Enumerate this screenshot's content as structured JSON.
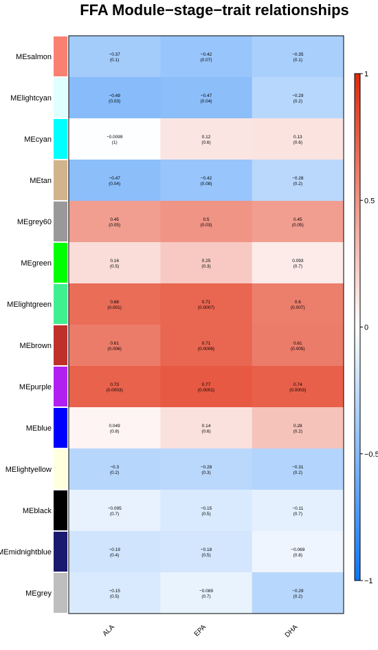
{
  "chart_data": {
    "type": "heatmap",
    "title": "FFA Module−stage−trait relationships",
    "columns": [
      "ALA",
      "EPA",
      "DHA"
    ],
    "rows": [
      {
        "name": "MEsalmon",
        "color": "#FA8072",
        "cells": [
          {
            "r": -0.37,
            "label": "−0.37",
            "p": "(0.1)"
          },
          {
            "r": -0.42,
            "label": "−0.42",
            "p": "(0.07)"
          },
          {
            "r": -0.35,
            "label": "−0.35",
            "p": "(0.1)"
          }
        ]
      },
      {
        "name": "MElightcyan",
        "color": "#E0FFFF",
        "cells": [
          {
            "r": -0.49,
            "label": "−0.49",
            "p": "(0.03)"
          },
          {
            "r": -0.47,
            "label": "−0.47",
            "p": "(0.04)"
          },
          {
            "r": -0.29,
            "label": "−0.29",
            "p": "(0.2)"
          }
        ]
      },
      {
        "name": "MEcyan",
        "color": "#00FFFF",
        "cells": [
          {
            "r": -0.0099,
            "label": "−0.0099",
            "p": "(1)"
          },
          {
            "r": 0.12,
            "label": "0.12",
            "p": "(0.6)"
          },
          {
            "r": 0.13,
            "label": "0.13",
            "p": "(0.6)"
          }
        ]
      },
      {
        "name": "MEtan",
        "color": "#D2B48C",
        "cells": [
          {
            "r": -0.47,
            "label": "−0.47",
            "p": "(0.04)"
          },
          {
            "r": -0.42,
            "label": "−0.42",
            "p": "(0.08)"
          },
          {
            "r": -0.28,
            "label": "−0.28",
            "p": "(0.2)"
          }
        ]
      },
      {
        "name": "MEgrey60",
        "color": "#999999",
        "cells": [
          {
            "r": 0.45,
            "label": "0.45",
            "p": "(0.05)"
          },
          {
            "r": 0.5,
            "label": "0.5",
            "p": "(0.03)"
          },
          {
            "r": 0.45,
            "label": "0.45",
            "p": "(0.05)"
          }
        ]
      },
      {
        "name": "MEgreen",
        "color": "#00FF00",
        "cells": [
          {
            "r": 0.16,
            "label": "0.16",
            "p": "(0.5)"
          },
          {
            "r": 0.25,
            "label": "0.25",
            "p": "(0.3)"
          },
          {
            "r": 0.093,
            "label": "0.093",
            "p": "(0.7)"
          }
        ]
      },
      {
        "name": "MElightgreen",
        "color": "#40F090",
        "cells": [
          {
            "r": 0.68,
            "label": "0.68",
            "p": "(0.001)"
          },
          {
            "r": 0.71,
            "label": "0.71",
            "p": "(0.0007)"
          },
          {
            "r": 0.6,
            "label": "0.6",
            "p": "(0.007)"
          }
        ]
      },
      {
        "name": "MEbrown",
        "color": "#C0302A",
        "cells": [
          {
            "r": 0.61,
            "label": "0.61",
            "p": "(0.006)"
          },
          {
            "r": 0.71,
            "label": "0.71",
            "p": "(0.0006)"
          },
          {
            "r": 0.61,
            "label": "0.61",
            "p": "(0.005)"
          }
        ]
      },
      {
        "name": "MEpurple",
        "color": "#B020F0",
        "cells": [
          {
            "r": 0.73,
            "label": "0.73",
            "p": "(0.0003)"
          },
          {
            "r": 0.77,
            "label": "0.77",
            "p": "(0.0001)"
          },
          {
            "r": 0.74,
            "label": "0.74",
            "p": "(0.0003)"
          }
        ]
      },
      {
        "name": "MEblue",
        "color": "#0000FF",
        "cells": [
          {
            "r": 0.049,
            "label": "0.049",
            "p": "(0.8)"
          },
          {
            "r": 0.14,
            "label": "0.14",
            "p": "(0.6)"
          },
          {
            "r": 0.28,
            "label": "0.28",
            "p": "(0.2)"
          }
        ]
      },
      {
        "name": "MElightyellow",
        "color": "#FFFFE0",
        "cells": [
          {
            "r": -0.3,
            "label": "−0.3",
            "p": "(0.2)"
          },
          {
            "r": -0.28,
            "label": "−0.28",
            "p": "(0.3)"
          },
          {
            "r": -0.31,
            "label": "−0.31",
            "p": "(0.2)"
          }
        ]
      },
      {
        "name": "MEblack",
        "color": "#000000",
        "cells": [
          {
            "r": -0.095,
            "label": "−0.095",
            "p": "(0.7)"
          },
          {
            "r": -0.15,
            "label": "−0.15",
            "p": "(0.5)"
          },
          {
            "r": -0.11,
            "label": "−0.11",
            "p": "(0.7)"
          }
        ]
      },
      {
        "name": "MEmidnightblue",
        "color": "#191970",
        "cells": [
          {
            "r": -0.19,
            "label": "−0.19",
            "p": "(0.4)"
          },
          {
            "r": -0.18,
            "label": "−0.18",
            "p": "(0.5)"
          },
          {
            "r": -0.069,
            "label": "−0.069",
            "p": "(0.8)"
          }
        ]
      },
      {
        "name": "MEgrey",
        "color": "#BEBEBE",
        "cells": [
          {
            "r": -0.15,
            "label": "−0.15",
            "p": "(0.5)"
          },
          {
            "r": -0.089,
            "label": "−0.089",
            "p": "(0.7)"
          },
          {
            "r": -0.29,
            "label": "−0.29",
            "p": "(0.2)"
          }
        ]
      }
    ],
    "color_scale": {
      "min": -1,
      "max": 1,
      "low_color": "#0A75F5",
      "mid_color": "#FFFFFF",
      "high_color": "#E0280A",
      "ticks": [
        {
          "value": 1,
          "label": "1"
        },
        {
          "value": 0.5,
          "label": "0.5"
        },
        {
          "value": 0,
          "label": "0"
        },
        {
          "value": -0.5,
          "label": "−0.5"
        },
        {
          "value": -1,
          "label": "−1"
        }
      ]
    }
  }
}
